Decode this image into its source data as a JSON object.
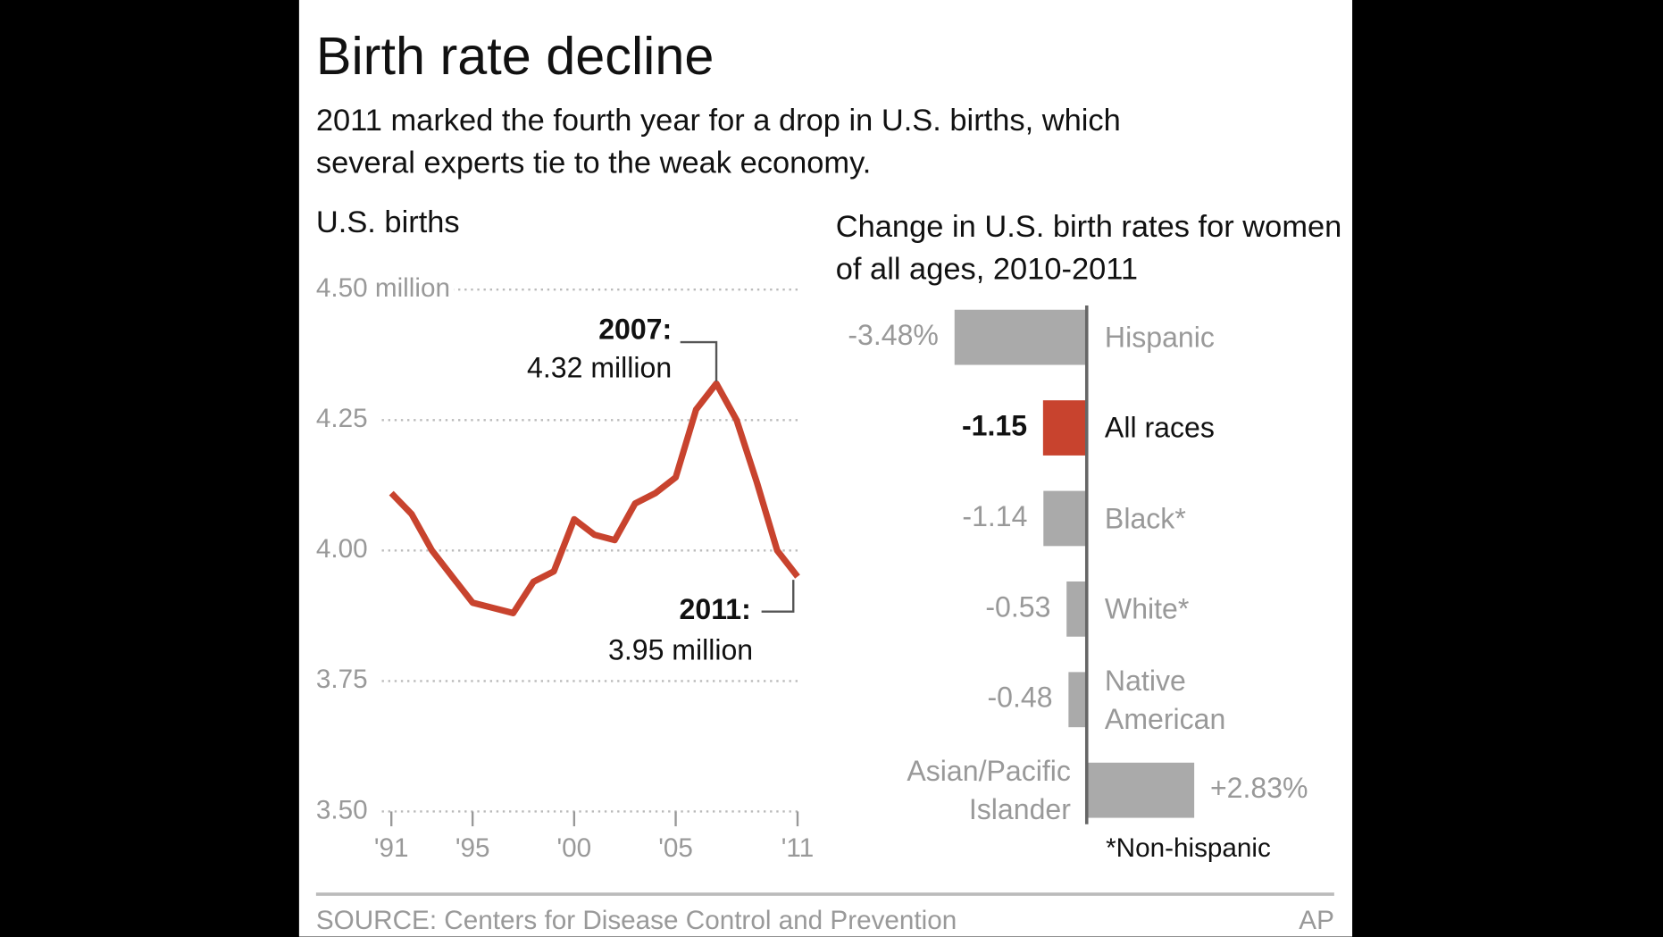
{
  "title": "Birth rate decline",
  "subtitle": "2011 marked the fourth year for a drop in U.S. births, which several experts tie to the weak economy.",
  "chart_data": [
    {
      "type": "line",
      "title": "U.S. births",
      "x": [
        1991,
        1992,
        1993,
        1994,
        1995,
        1996,
        1997,
        1998,
        1999,
        2000,
        2001,
        2002,
        2003,
        2004,
        2005,
        2006,
        2007,
        2008,
        2009,
        2010,
        2011
      ],
      "series": [
        {
          "name": "U.S. births",
          "color": "#c8432e",
          "values": [
            4.11,
            4.07,
            4.0,
            3.95,
            3.9,
            3.89,
            3.88,
            3.94,
            3.96,
            4.06,
            4.03,
            4.02,
            4.09,
            4.11,
            4.14,
            4.27,
            4.32,
            4.25,
            4.13,
            4.0,
            3.95
          ]
        }
      ],
      "xlim": [
        1991,
        2011
      ],
      "xticks": [
        {
          "value": 1991,
          "label": "'91"
        },
        {
          "value": 1995,
          "label": "'95"
        },
        {
          "value": 2000,
          "label": "'00"
        },
        {
          "value": 2005,
          "label": "'05"
        },
        {
          "value": 2011,
          "label": "'11"
        }
      ],
      "ylim": [
        3.5,
        4.5
      ],
      "yticks": [
        {
          "value": 3.5,
          "label": "3.50"
        },
        3.75,
        {
          "value": 4,
          "label": "4.00"
        },
        4.25,
        {
          "value": 4.5,
          "label": "4.50 million"
        }
      ],
      "grid": true,
      "annotations": [
        {
          "x": 2007,
          "title": "2007:",
          "text": "4.32 million"
        },
        {
          "x": 2011,
          "title": "2011:",
          "text": "3.95 million"
        }
      ]
    },
    {
      "type": "hbar",
      "title": "Change in U.S. birth rates for women of all ages, 2010-2011",
      "categories": [
        "Hispanic",
        "All races",
        "Black*",
        "White*",
        "Native American",
        "Asian/Pacific Islander"
      ],
      "values": [
        -3.48,
        -1.15,
        -1.14,
        -0.53,
        -0.48,
        2.83
      ],
      "value_labels": [
        "-3.48%",
        "-1.15",
        "-1.14",
        "-0.53",
        "-0.48",
        "+2.83%"
      ],
      "colors": [
        "#aaaaaa",
        "#c8432e",
        "#aaaaaa",
        "#aaaaaa",
        "#aaaaaa",
        "#aaaaaa"
      ],
      "label_colors": [
        "#999999",
        "#111111",
        "#999999",
        "#999999",
        "#999999",
        "#999999"
      ],
      "note": "*Non-hispanic"
    }
  ],
  "source": "SOURCE: Centers for Disease Control and Prevention",
  "credit": "AP"
}
